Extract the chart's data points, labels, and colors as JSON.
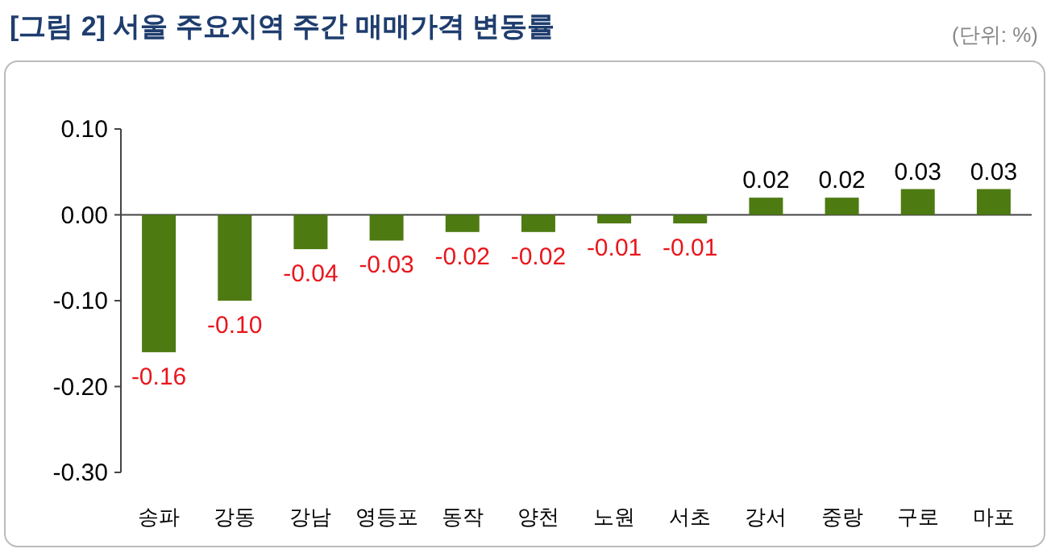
{
  "chart_data": {
    "type": "bar",
    "title": "[그림 2] 서울 주요지역 주간 매매가격 변동률",
    "annotations": [
      "(단위: %)"
    ],
    "categories": [
      "송파",
      "강동",
      "강남",
      "영등포",
      "동작",
      "양천",
      "노원",
      "서초",
      "강서",
      "중랑",
      "구로",
      "마포"
    ],
    "values": [
      -0.16,
      -0.1,
      -0.04,
      -0.03,
      -0.02,
      -0.02,
      -0.01,
      -0.01,
      0.02,
      0.02,
      0.03,
      0.03
    ],
    "value_labels": [
      "-0.16",
      "-0.10",
      "-0.04",
      "-0.03",
      "-0.02",
      "-0.02",
      "-0.01",
      "-0.01",
      "0.02",
      "0.02",
      "0.03",
      "0.03"
    ],
    "color": "#4e7a12",
    "ylim": [
      -0.3,
      0.1
    ],
    "yticks": [
      {
        "value": 0.1,
        "label": "0.10"
      },
      {
        "value": 0,
        "label": "0.00"
      },
      {
        "value": -0.1,
        "label": "-0.10"
      },
      {
        "value": -0.2,
        "label": "-0.20"
      },
      {
        "value": -0.3,
        "label": "-0.30"
      }
    ],
    "grid": "y"
  }
}
